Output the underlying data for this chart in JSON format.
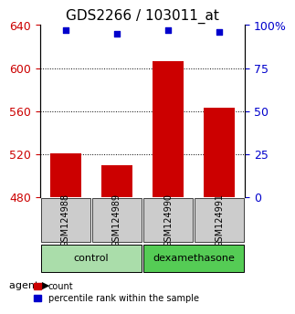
{
  "title": "GDS2266 / 103011_at",
  "samples": [
    "GSM124988",
    "GSM124989",
    "GSM124990",
    "GSM124991"
  ],
  "bar_values": [
    521,
    510,
    606,
    563
  ],
  "percentile_values": [
    97,
    95,
    97,
    96
  ],
  "bar_color": "#cc0000",
  "percentile_color": "#0000cc",
  "ylim_left": [
    480,
    640
  ],
  "yticks_left": [
    480,
    520,
    560,
    600,
    640
  ],
  "ylim_right": [
    0,
    100
  ],
  "yticks_right": [
    0,
    25,
    50,
    75,
    100
  ],
  "ytick_labels_right": [
    "0",
    "25",
    "50",
    "75",
    "100%"
  ],
  "bar_bottom": 480,
  "groups": [
    {
      "label": "control",
      "samples": [
        0,
        1
      ],
      "color": "#aaddaa"
    },
    {
      "label": "dexamethasone",
      "samples": [
        2,
        3
      ],
      "color": "#55cc55"
    }
  ],
  "agent_label": "agent",
  "legend_count_label": "count",
  "legend_pct_label": "percentile rank within the sample",
  "title_fontsize": 11,
  "tick_fontsize": 9,
  "label_fontsize": 9
}
